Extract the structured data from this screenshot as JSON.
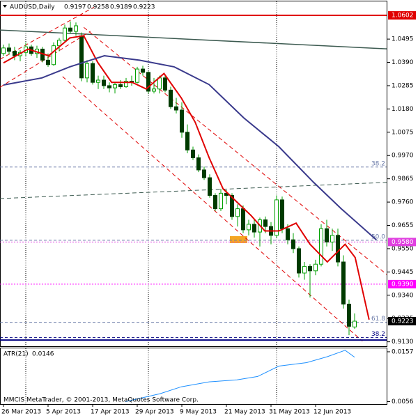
{
  "chart_data": [
    {
      "type": "candlestick",
      "title": "AUDUSD,Daily",
      "up_color": "#00a000",
      "down_color": "#003a00",
      "wick_color": "#00a000",
      "xlim": [
        -0.625,
        68.75
      ],
      "ylim": [
        0.911,
        1.0665
      ],
      "yticks": [
        1.0495,
        {
          "value": 1.039,
          "label": "1.0390"
        },
        1.0285,
        {
          "value": 1.018,
          "label": "1.0180"
        },
        1.0075,
        {
          "value": 0.997,
          "label": "0.9970"
        },
        0.9865,
        {
          "value": 0.976,
          "label": "0.9760"
        },
        0.9655,
        {
          "value": 0.955,
          "label": "0.9550"
        },
        0.9445,
        {
          "value": 0.934,
          "label": "0.9340"
        },
        0.9235,
        {
          "value": 0.913,
          "label": "0.9130"
        }
      ],
      "xticks": [
        {
          "value": 0,
          "label": "26 Mar 2013"
        },
        {
          "value": 8,
          "label": "5 Apr 2013"
        },
        {
          "value": 16,
          "label": "17 Apr 2013"
        },
        {
          "value": 24,
          "label": "29 Apr 2013"
        },
        {
          "value": 32,
          "label": "9 May 2013"
        },
        {
          "value": 40,
          "label": "21 May 2013"
        },
        {
          "value": 48,
          "label": "31 May 2013"
        },
        {
          "value": 56,
          "label": "12 Jun 2013"
        }
      ],
      "separators": [
        4,
        26,
        49
      ],
      "candles": {
        "open": [
          1.043,
          1.0455,
          1.044,
          1.042,
          1.0435,
          1.046,
          1.043,
          1.045,
          1.04,
          1.038,
          1.0465,
          1.049,
          1.0545,
          1.053,
          1.051,
          1.032,
          1.0385,
          1.03,
          1.031,
          1.0285,
          1.0275,
          1.029,
          1.028,
          1.0305,
          1.03,
          1.036,
          1.0345,
          1.026,
          1.027,
          1.032,
          1.0265,
          1.019,
          1.0175,
          1.0075,
          0.9995,
          0.996,
          0.9905,
          0.987,
          0.979,
          0.973,
          0.98,
          0.979,
          0.9695,
          0.973,
          0.9635,
          0.966,
          0.9625,
          0.968,
          0.965,
          0.961,
          0.977,
          0.964,
          0.959,
          0.955,
          0.944,
          0.947,
          0.945,
          0.948,
          0.964,
          0.958,
          0.961,
          0.949,
          0.93,
          0.9197
        ],
        "high": [
          1.047,
          1.0475,
          1.046,
          1.0445,
          1.048,
          1.047,
          1.0465,
          1.046,
          1.043,
          1.048,
          1.05,
          1.056,
          1.0575,
          1.057,
          1.0525,
          1.04,
          1.0395,
          1.033,
          1.033,
          1.03,
          1.03,
          1.031,
          1.032,
          1.033,
          1.037,
          1.0375,
          1.035,
          1.032,
          1.033,
          1.033,
          1.028,
          1.023,
          1.021,
          1.011,
          1.001,
          0.9975,
          0.992,
          0.9885,
          0.98,
          0.982,
          0.9815,
          0.98,
          0.975,
          0.9745,
          0.968,
          0.968,
          0.969,
          0.9695,
          0.967,
          0.979,
          0.9785,
          0.966,
          0.962,
          0.956,
          0.949,
          0.948,
          0.95,
          0.966,
          0.968,
          0.964,
          0.964,
          0.952,
          0.932,
          0.9258
        ],
        "low": [
          1.042,
          1.0425,
          1.04,
          1.0395,
          1.042,
          1.042,
          1.041,
          1.039,
          1.037,
          1.0375,
          1.044,
          1.048,
          1.052,
          1.051,
          1.0305,
          1.03,
          1.029,
          1.027,
          1.027,
          1.0255,
          1.025,
          1.027,
          1.0275,
          1.0285,
          1.0295,
          1.033,
          1.025,
          1.025,
          1.025,
          1.0255,
          1.018,
          1.016,
          1.005,
          0.998,
          0.995,
          0.9895,
          0.986,
          0.978,
          0.972,
          0.972,
          0.975,
          0.968,
          0.965,
          0.962,
          0.961,
          0.96,
          0.956,
          0.962,
          0.957,
          0.96,
          0.962,
          0.957,
          0.953,
          0.942,
          0.941,
          0.933,
          0.943,
          0.947,
          0.956,
          0.954,
          0.947,
          0.928,
          0.916,
          0.9189
        ],
        "close": [
          1.0455,
          1.044,
          1.042,
          1.0435,
          1.046,
          1.043,
          1.045,
          1.04,
          1.038,
          1.0465,
          1.049,
          1.0545,
          1.053,
          1.0555,
          1.032,
          1.0385,
          1.03,
          1.031,
          1.0285,
          1.0275,
          1.029,
          1.028,
          1.0305,
          1.03,
          1.036,
          1.0345,
          1.026,
          1.027,
          1.032,
          1.0265,
          1.019,
          1.0175,
          1.0075,
          0.9995,
          0.996,
          0.9905,
          0.987,
          0.979,
          0.973,
          0.98,
          0.979,
          0.9695,
          0.973,
          0.9635,
          0.966,
          0.9625,
          0.968,
          0.965,
          0.961,
          0.977,
          0.964,
          0.959,
          0.955,
          0.944,
          0.947,
          0.945,
          0.948,
          0.964,
          0.958,
          0.961,
          0.949,
          0.93,
          0.92,
          0.9223
        ]
      },
      "moving_averages": [
        {
          "color": "#e00000",
          "x": [
            0,
            4.4,
            8.1,
            11.9,
            14.4,
            16.9,
            19.4,
            23.1,
            25.6,
            28.8,
            31.9,
            34.4,
            36.9,
            39.4,
            41.9,
            44.4,
            46.9,
            49.4,
            52.5,
            55,
            58.1,
            61.3,
            63.1,
            65.6
          ],
          "values": [
            1.0388,
            1.045,
            1.042,
            1.05,
            1.051,
            1.039,
            1.03,
            1.03,
            1.027,
            1.034,
            1.023,
            1.012,
            0.996,
            0.982,
            0.976,
            0.97,
            0.963,
            0.963,
            0.9665,
            0.957,
            0.949,
            0.957,
            0.951,
            0.923
          ]
        },
        {
          "color": "#3a3a8c",
          "x": [
            0,
            6.9,
            11.9,
            18.1,
            24.4,
            30.6,
            36.9,
            43.1,
            49.4,
            55.6,
            60.6,
            66.9
          ],
          "values": [
            1.0288,
            1.032,
            1.037,
            1.042,
            1.04,
            1.037,
            1.029,
            1.014,
            1.001,
            0.985,
            0.973,
            0.959
          ]
        }
      ],
      "trendlines": [
        {
          "color": "#3c5a50",
          "dash": false,
          "x": [
            -0.625,
            68.75
          ],
          "values": [
            1.0536,
            1.0451
          ]
        },
        {
          "color": "#3c5a50",
          "dash": true,
          "x": [
            -0.625,
            68.75
          ],
          "values": [
            0.9776,
            0.9849
          ]
        },
        {
          "color": "#e00000",
          "dash": true,
          "x": [
            10.6,
            64.4
          ],
          "values": [
            1.0326,
            0.9133
          ]
        },
        {
          "color": "#e00000",
          "dash": true,
          "x": [
            14.4,
            68.75
          ],
          "values": [
            1.0548,
            0.9434
          ]
        },
        {
          "color": "#e00000",
          "dash": true,
          "x": [
            -0.625,
            16.25
          ],
          "values": [
            1.0404,
            1.0639
          ]
        },
        {
          "color": "#e00000",
          "dash": true,
          "x": [
            -0.625,
            15.6
          ],
          "values": [
            1.0278,
            1.053
          ]
        }
      ],
      "fib_levels": [
        {
          "label": "38.2",
          "price": 0.9918,
          "color": "#6a7aa8"
        },
        {
          "label": "50.0",
          "price": 0.9588,
          "color": "#6a7aa8"
        },
        {
          "label": "61.8",
          "price": 0.9218,
          "color": "#6a7aa8"
        },
        {
          "label": "38.2",
          "price": 0.9149,
          "color": "#000080"
        }
      ],
      "hlines": [
        {
          "value": 1.0602,
          "color": "#e00000",
          "dash": false,
          "labeled": true
        },
        {
          "value": 0.958,
          "label": "0.9580",
          "color": "#e040e0",
          "dash": true,
          "labeled": true
        },
        {
          "value": 0.939,
          "label": "0.9390",
          "color": "#ff00ff",
          "dash": true,
          "labeled": true
        },
        {
          "value": 0.9138,
          "color": "#000080",
          "dash": false,
          "labeled": false
        }
      ]
    },
    {
      "type": "line",
      "title": "ATR(21)",
      "last_value": 0.0146,
      "color": "#1e90ff",
      "ylim": [
        0.0051,
        0.0164
      ],
      "yticks": [
        0.0157,
        0.0056
      ],
      "x": [
        21.9,
        28.1,
        31.9,
        36.9,
        41.9,
        45.6,
        49.4,
        54.4,
        58.1,
        61.3,
        63
      ],
      "values": [
        0.0056,
        0.0072,
        0.0086,
        0.0096,
        0.01,
        0.0107,
        0.0128,
        0.0135,
        0.0147,
        0.016,
        0.0146
      ],
      "footer": "MMCIS MetaTrader, © 2001-2013, MetaQuotes Software Corp."
    }
  ]
}
